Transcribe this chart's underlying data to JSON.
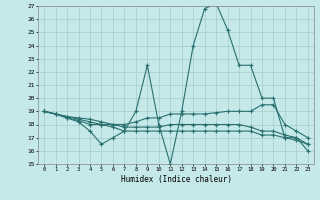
{
  "xlabel": "Humidex (Indice chaleur)",
  "xlim": [
    -0.5,
    23.5
  ],
  "ylim": [
    15,
    27
  ],
  "yticks": [
    15,
    16,
    17,
    18,
    19,
    20,
    21,
    22,
    23,
    24,
    25,
    26,
    27
  ],
  "xticks": [
    0,
    1,
    2,
    3,
    4,
    5,
    6,
    7,
    8,
    9,
    10,
    11,
    12,
    13,
    14,
    15,
    16,
    17,
    18,
    19,
    20,
    21,
    22,
    23
  ],
  "bg_color": "#c5e8e8",
  "grid_color": "#a8cccc",
  "line_color": "#2a7070",
  "lines": [
    {
      "x": [
        0,
        1,
        2,
        3,
        4,
        5,
        6,
        7,
        8,
        9,
        10,
        11,
        12,
        13,
        14,
        15,
        16,
        17,
        18,
        19,
        20,
        21,
        22,
        23
      ],
      "y": [
        19.0,
        18.8,
        18.5,
        18.2,
        17.5,
        16.5,
        17.0,
        17.5,
        19.0,
        22.5,
        18.0,
        15.0,
        19.0,
        24.0,
        26.8,
        27.2,
        25.2,
        22.5,
        22.5,
        20.0,
        20.0,
        17.0,
        17.0,
        16.0
      ]
    },
    {
      "x": [
        0,
        1,
        2,
        3,
        4,
        5,
        6,
        7,
        8,
        9,
        10,
        11,
        12,
        13,
        14,
        15,
        16,
        17,
        18,
        19,
        20,
        21,
        22,
        23
      ],
      "y": [
        19.0,
        18.8,
        18.5,
        18.3,
        18.0,
        18.0,
        18.0,
        18.0,
        18.2,
        18.5,
        18.5,
        18.8,
        18.8,
        18.8,
        18.8,
        18.9,
        19.0,
        19.0,
        19.0,
        19.5,
        19.5,
        18.0,
        17.5,
        17.0
      ]
    },
    {
      "x": [
        0,
        1,
        2,
        3,
        4,
        5,
        6,
        7,
        8,
        9,
        10,
        11,
        12,
        13,
        14,
        15,
        16,
        17,
        18,
        19,
        20,
        21,
        22,
        23
      ],
      "y": [
        19.0,
        18.8,
        18.6,
        18.4,
        18.2,
        18.0,
        17.8,
        17.5,
        17.5,
        17.5,
        17.5,
        17.5,
        17.5,
        17.5,
        17.5,
        17.5,
        17.5,
        17.5,
        17.5,
        17.2,
        17.2,
        17.0,
        16.8,
        16.5
      ]
    },
    {
      "x": [
        0,
        1,
        2,
        3,
        4,
        5,
        6,
        7,
        8,
        9,
        10,
        11,
        12,
        13,
        14,
        15,
        16,
        17,
        18,
        19,
        20,
        21,
        22,
        23
      ],
      "y": [
        19.0,
        18.8,
        18.6,
        18.5,
        18.4,
        18.2,
        18.0,
        17.8,
        17.8,
        17.8,
        17.8,
        18.0,
        18.0,
        18.0,
        18.0,
        18.0,
        18.0,
        18.0,
        17.8,
        17.5,
        17.5,
        17.2,
        17.0,
        16.5
      ]
    }
  ]
}
